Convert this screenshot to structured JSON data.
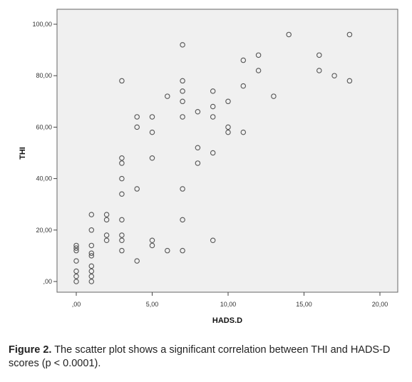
{
  "chart_data": {
    "type": "scatter",
    "xlabel": "HADS.D",
    "ylabel": "THI",
    "xlim": [
      0,
      20
    ],
    "ylim": [
      0,
      100
    ],
    "x_ticks": [
      0,
      5,
      10,
      15,
      20
    ],
    "y_ticks": [
      0,
      20,
      40,
      60,
      80,
      100
    ],
    "x_tick_labels": [
      ",00",
      "5,00",
      "10,00",
      "15,00",
      "20,00"
    ],
    "y_tick_labels": [
      ",00",
      "20,00",
      "40,00",
      "60,00",
      "80,00",
      "100,00"
    ],
    "grid": false,
    "plot_background": "#f0f0f0",
    "marker_color": "#555555",
    "series": [
      {
        "points": [
          [
            0,
            0
          ],
          [
            0,
            2
          ],
          [
            0,
            4
          ],
          [
            0,
            8
          ],
          [
            0,
            12
          ],
          [
            0,
            13
          ],
          [
            0,
            14
          ],
          [
            1,
            0
          ],
          [
            1,
            2
          ],
          [
            1,
            4
          ],
          [
            1,
            6
          ],
          [
            1,
            10
          ],
          [
            1,
            11
          ],
          [
            1,
            14
          ],
          [
            1,
            20
          ],
          [
            1,
            26
          ],
          [
            2,
            16
          ],
          [
            2,
            18
          ],
          [
            2,
            24
          ],
          [
            2,
            26
          ],
          [
            3,
            12
          ],
          [
            3,
            16
          ],
          [
            3,
            18
          ],
          [
            3,
            24
          ],
          [
            3,
            34
          ],
          [
            3,
            40
          ],
          [
            3,
            46
          ],
          [
            3,
            48
          ],
          [
            3,
            78
          ],
          [
            4,
            8
          ],
          [
            4,
            36
          ],
          [
            4,
            60
          ],
          [
            4,
            64
          ],
          [
            5,
            14
          ],
          [
            5,
            16
          ],
          [
            5,
            48
          ],
          [
            5,
            58
          ],
          [
            5,
            64
          ],
          [
            6,
            12
          ],
          [
            6,
            72
          ],
          [
            7,
            12
          ],
          [
            7,
            24
          ],
          [
            7,
            36
          ],
          [
            7,
            64
          ],
          [
            7,
            70
          ],
          [
            7,
            74
          ],
          [
            7,
            78
          ],
          [
            7,
            92
          ],
          [
            8,
            46
          ],
          [
            8,
            52
          ],
          [
            8,
            66
          ],
          [
            9,
            16
          ],
          [
            9,
            50
          ],
          [
            9,
            64
          ],
          [
            9,
            68
          ],
          [
            9,
            74
          ],
          [
            10,
            58
          ],
          [
            10,
            60
          ],
          [
            10,
            70
          ],
          [
            11,
            58
          ],
          [
            11,
            76
          ],
          [
            11,
            86
          ],
          [
            12,
            82
          ],
          [
            12,
            88
          ],
          [
            13,
            72
          ],
          [
            14,
            96
          ],
          [
            16,
            82
          ],
          [
            16,
            88
          ],
          [
            17,
            80
          ],
          [
            18,
            78
          ],
          [
            18,
            96
          ]
        ]
      }
    ]
  },
  "caption": {
    "label": "Figure 2.",
    "text": " The scatter plot shows a significant correlation between THI and HADS-D scores (p < 0.0001)."
  }
}
